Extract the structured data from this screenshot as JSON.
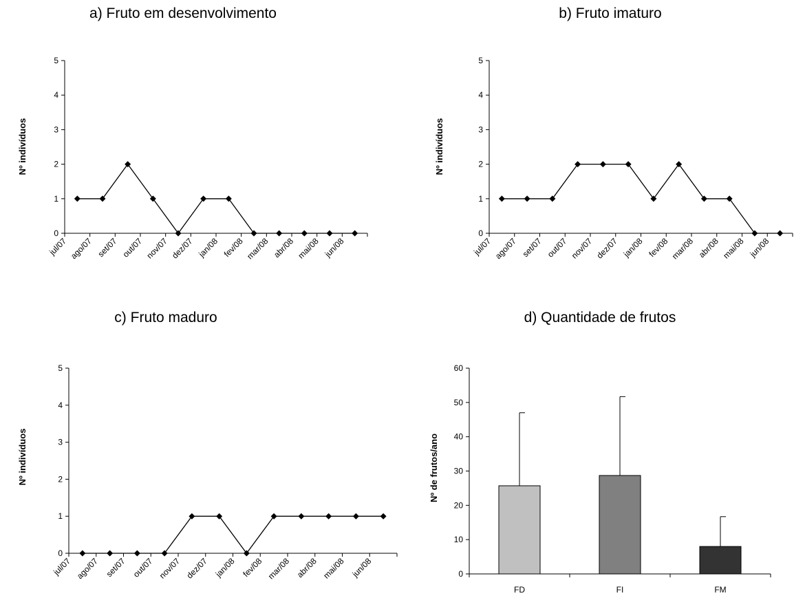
{
  "chart_data": [
    {
      "type": "line",
      "title": "a) Fruto em desenvolvimento",
      "ylabel": "Nº indivíduos",
      "xlabel": "",
      "categories": [
        "jul/07",
        "ago/07",
        "set/07",
        "out/07",
        "nov/07",
        "dez/07",
        "jan/08",
        "fev/08",
        "mar/08",
        "abr/08",
        "mai/08",
        "jun/08"
      ],
      "values": [
        1,
        1,
        2,
        1,
        0,
        1,
        1,
        0,
        0,
        0,
        0,
        0
      ],
      "ylim": [
        0,
        5
      ],
      "yticks": [
        0,
        1,
        2,
        3,
        4,
        5
      ],
      "grid": false,
      "marker": "diamond",
      "color": "#000000"
    },
    {
      "type": "line",
      "title": "b) Fruto imaturo",
      "ylabel": "Nº indivíduos",
      "xlabel": "",
      "categories": [
        "jul/07",
        "ago/07",
        "set/07",
        "out/07",
        "nov/07",
        "dez/07",
        "jan/08",
        "fev/08",
        "mar/08",
        "abr/08",
        "mai/08",
        "jun/08"
      ],
      "values": [
        1,
        1,
        1,
        2,
        2,
        2,
        1,
        2,
        1,
        1,
        0,
        0
      ],
      "ylim": [
        0,
        5
      ],
      "yticks": [
        0,
        1,
        2,
        3,
        4,
        5
      ],
      "grid": false,
      "marker": "diamond",
      "color": "#000000"
    },
    {
      "type": "line",
      "title": "c) Fruto maduro",
      "ylabel": "Nº indivíduos",
      "xlabel": "",
      "categories": [
        "jul/07",
        "ago/07",
        "set/07",
        "out/07",
        "nov/07",
        "dez/07",
        "jan/08",
        "fev/08",
        "mar/08",
        "abr/08",
        "mai/08",
        "jun/08"
      ],
      "values": [
        0,
        0,
        0,
        0,
        1,
        1,
        0,
        1,
        1,
        1,
        1,
        1
      ],
      "ylim": [
        0,
        5
      ],
      "yticks": [
        0,
        1,
        2,
        3,
        4,
        5
      ],
      "grid": false,
      "marker": "diamond",
      "color": "#000000"
    },
    {
      "type": "bar",
      "title": "d) Quantidade de frutos",
      "ylabel": "Nº de frutos/ano",
      "xlabel": "",
      "categories": [
        "FD",
        "FI",
        "FM"
      ],
      "values": [
        25.7,
        28.7,
        8.0
      ],
      "error_upper": [
        21.3,
        23.0,
        8.7
      ],
      "ylim": [
        0,
        60
      ],
      "yticks": [
        0,
        10,
        20,
        30,
        40,
        50,
        60
      ],
      "grid": false,
      "bar_colors": [
        "#c0c0c0",
        "#808080",
        "#333333"
      ]
    }
  ]
}
